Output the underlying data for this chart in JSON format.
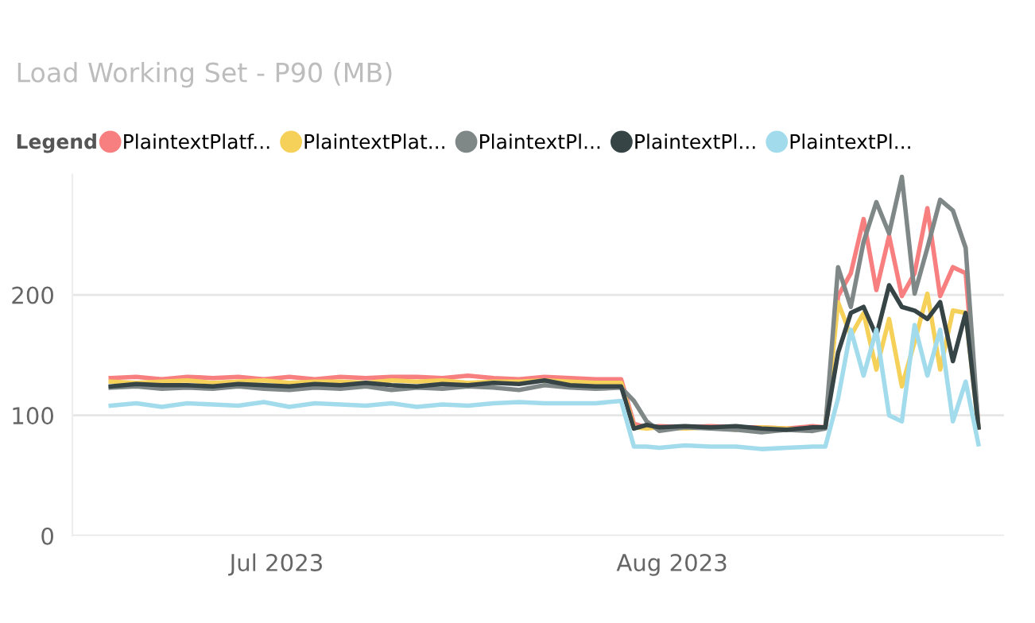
{
  "chart_data": {
    "type": "line",
    "title": "Load Working Set - P90 (MB)",
    "legend_title": "Legend",
    "legend": "top left",
    "grid": "y",
    "x": [
      "2023-06-18",
      "2023-06-20",
      "2023-06-22",
      "2023-06-24",
      "2023-06-26",
      "2023-06-28",
      "2023-06-30",
      "2023-07-02",
      "2023-07-04",
      "2023-07-06",
      "2023-07-08",
      "2023-07-10",
      "2023-07-12",
      "2023-07-14",
      "2023-07-16",
      "2023-07-18",
      "2023-07-20",
      "2023-07-22",
      "2023-07-24",
      "2023-07-26",
      "2023-07-28",
      "2023-07-29",
      "2023-07-30",
      "2023-07-31",
      "2023-08-02",
      "2023-08-04",
      "2023-08-06",
      "2023-08-08",
      "2023-08-10",
      "2023-08-12",
      "2023-08-13",
      "2023-08-14",
      "2023-08-15",
      "2023-08-16",
      "2023-08-17",
      "2023-08-18",
      "2023-08-19",
      "2023-08-20",
      "2023-08-21",
      "2023-08-22",
      "2023-08-23",
      "2023-08-24",
      "2023-08-25"
    ],
    "xlim": [
      "2023-06-15",
      "2023-08-27"
    ],
    "xticks": [
      {
        "value": "2023-07-01",
        "label": "Jul 2023"
      },
      {
        "value": "2023-08-01",
        "label": "Aug 2023"
      }
    ],
    "ylim": [
      0,
      300
    ],
    "yticks": [
      0,
      100,
      200
    ],
    "series": [
      {
        "name": "PlaintextPlatf...",
        "color": "#f77f7f",
        "values": [
          131,
          132,
          130,
          132,
          131,
          132,
          130,
          132,
          130,
          132,
          131,
          132,
          132,
          131,
          133,
          131,
          130,
          132,
          131,
          130,
          130,
          93,
          90,
          91,
          90,
          91,
          90,
          90,
          89,
          91,
          90,
          199,
          218,
          263,
          204,
          249,
          199,
          218,
          272,
          199,
          223,
          218,
          90
        ]
      },
      {
        "name": "PlaintextPlat...",
        "color": "#f5d15a",
        "values": [
          128,
          127,
          128,
          129,
          127,
          128,
          129,
          127,
          128,
          128,
          127,
          129,
          128,
          129,
          127,
          128,
          128,
          129,
          128,
          127,
          127,
          90,
          89,
          90,
          89,
          90,
          88,
          90,
          89,
          88,
          90,
          194,
          166,
          185,
          138,
          180,
          124,
          161,
          201,
          138,
          187,
          185,
          90
        ]
      },
      {
        "name": "PlaintextPl...",
        "color": "#7f8787",
        "values": [
          123,
          124,
          122,
          123,
          122,
          124,
          122,
          121,
          123,
          122,
          124,
          121,
          123,
          122,
          124,
          123,
          121,
          125,
          123,
          122,
          123,
          112,
          95,
          87,
          90,
          89,
          88,
          86,
          88,
          87,
          89,
          223,
          190,
          244,
          277,
          251,
          298,
          201,
          239,
          279,
          270,
          239,
          90
        ]
      },
      {
        "name": "PlaintextPl...",
        "color": "#364446",
        "values": [
          124,
          126,
          125,
          125,
          124,
          126,
          125,
          124,
          126,
          125,
          127,
          125,
          124,
          126,
          125,
          127,
          126,
          129,
          125,
          124,
          124,
          89,
          92,
          90,
          91,
          90,
          91,
          89,
          88,
          90,
          90,
          152,
          185,
          190,
          166,
          208,
          190,
          187,
          180,
          194,
          145,
          185,
          90
        ]
      },
      {
        "name": "PlaintextPl...",
        "color": "#a2dcec",
        "values": [
          108,
          110,
          107,
          110,
          109,
          108,
          111,
          107,
          110,
          109,
          108,
          110,
          107,
          109,
          108,
          110,
          111,
          110,
          110,
          110,
          112,
          74,
          74,
          73,
          75,
          74,
          74,
          72,
          73,
          74,
          74,
          114,
          171,
          133,
          171,
          100,
          95,
          175,
          133,
          171,
          95,
          128,
          76
        ]
      }
    ]
  }
}
